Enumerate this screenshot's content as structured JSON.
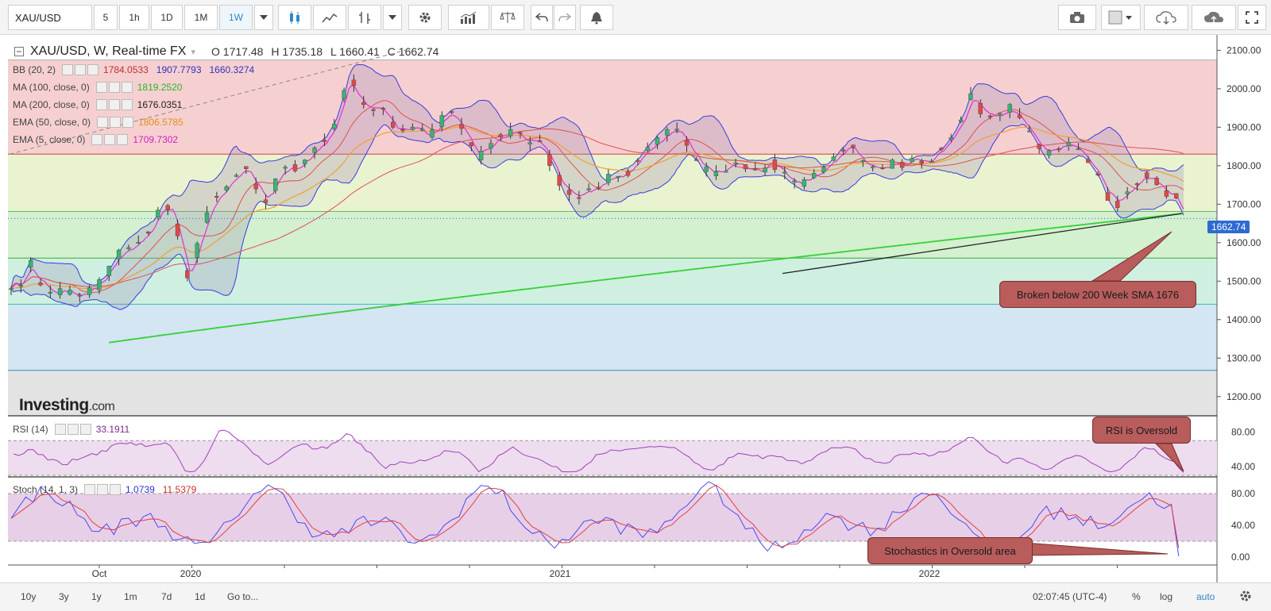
{
  "toolbar": {
    "symbol": "XAU/USD",
    "intervals": [
      "5",
      "1h",
      "1D",
      "1M",
      "1W"
    ],
    "active_interval": "1W"
  },
  "header": {
    "title": "XAU/USD, W, Real-time FX",
    "open": "O 1717.48",
    "high": "H 1735.18",
    "low": "L 1660.41",
    "close": "C 1662.74"
  },
  "indicators": {
    "bb": {
      "label": "BB (20, 2)",
      "v1": "1784.0533",
      "v2": "1907.7793",
      "v3": "1660.3274"
    },
    "ma100": {
      "label": "MA (100, close, 0)",
      "value": "1819.2520"
    },
    "ma200": {
      "label": "MA (200, close, 0)",
      "value": "1676.0351"
    },
    "ema50": {
      "label": "EMA (50, close, 0)",
      "value": "1806.5785"
    },
    "ema5": {
      "label": "EMA (5, close, 0)",
      "value": "1709.7302"
    },
    "rsi": {
      "label": "RSI (14)",
      "value": "33.1911"
    },
    "stoch": {
      "label": "Stoch (14, 1, 3)",
      "k": "1.0739",
      "d": "11.5379"
    }
  },
  "annotations": {
    "sma_break": "Broken below 200 Week SMA 1676",
    "rsi": "RSI is Oversold",
    "stoch": "Stochastics in Oversold area"
  },
  "price_label": "1662.74",
  "logo": {
    "main": "Investing",
    "suffix": ".com"
  },
  "bottom": {
    "ranges": [
      "10y",
      "3y",
      "1y",
      "1m",
      "7d",
      "1d"
    ],
    "goto": "Go to...",
    "time": "02:07:45 (UTC-4)",
    "pct": "%",
    "log": "log",
    "auto": "auto"
  },
  "colors": {
    "bull": "#3bb273",
    "bear": "#e04848",
    "bb": "#3a3ae0",
    "ma100": "#e05050",
    "ma200": "#35d135",
    "ema50": "#f0a030",
    "ema5": "#e030d0",
    "rsi": "#a040c0",
    "stoch_k": "#4a4af0",
    "stoch_d": "#e04040",
    "accent": "#2f88c9"
  },
  "chart_data": {
    "type": "candlestick",
    "title": "XAU/USD, W, Real-time FX",
    "x_labels": [
      "Oct",
      "2020",
      "2021",
      "2022"
    ],
    "y_ticks": [
      1200,
      1300,
      1400,
      1500,
      1600,
      1700,
      1800,
      1900,
      2000,
      2100
    ],
    "ylim": [
      1150,
      2140
    ],
    "fib_levels": [
      2075,
      1830,
      1681,
      1560,
      1440,
      1268
    ],
    "last_close": 1662.74,
    "ma200_value": 1676.0351,
    "rsi": {
      "ticks": [
        40,
        80
      ],
      "ylim": [
        30,
        95
      ],
      "overbought": 70,
      "oversold": 30,
      "last": 33.1911
    },
    "stoch": {
      "ticks": [
        0,
        40,
        80
      ],
      "ylim": [
        -8,
        100
      ],
      "upper": 80,
      "lower": 20,
      "k": 1.0739,
      "d": 11.5379
    },
    "price_anchors": [
      [
        0,
        1490
      ],
      [
        4,
        1500
      ],
      [
        8,
        1545
      ],
      [
        10,
        1510
      ],
      [
        14,
        1480
      ],
      [
        18,
        1470
      ],
      [
        22,
        1475
      ],
      [
        26,
        1460
      ],
      [
        30,
        1465
      ],
      [
        34,
        1480
      ],
      [
        38,
        1510
      ],
      [
        42,
        1560
      ],
      [
        46,
        1580
      ],
      [
        50,
        1590
      ],
      [
        54,
        1620
      ],
      [
        58,
        1650
      ],
      [
        62,
        1700
      ],
      [
        66,
        1690
      ],
      [
        70,
        1560
      ],
      [
        73,
        1480
      ],
      [
        76,
        1600
      ],
      [
        80,
        1680
      ],
      [
        84,
        1720
      ],
      [
        88,
        1750
      ],
      [
        92,
        1780
      ],
      [
        96,
        1800
      ],
      [
        100,
        1750
      ],
      [
        104,
        1700
      ],
      [
        108,
        1760
      ],
      [
        112,
        1800
      ],
      [
        116,
        1790
      ],
      [
        120,
        1820
      ],
      [
        124,
        1840
      ],
      [
        128,
        1870
      ],
      [
        132,
        1900
      ],
      [
        136,
        2000
      ],
      [
        138,
        2040
      ],
      [
        142,
        1960
      ],
      [
        146,
        1940
      ],
      [
        150,
        1950
      ],
      [
        154,
        1930
      ],
      [
        158,
        1880
      ],
      [
        162,
        1900
      ],
      [
        166,
        1910
      ],
      [
        170,
        1870
      ],
      [
        174,
        1900
      ],
      [
        178,
        1940
      ],
      [
        182,
        1920
      ],
      [
        186,
        1870
      ],
      [
        190,
        1820
      ],
      [
        194,
        1840
      ],
      [
        198,
        1870
      ],
      [
        202,
        1880
      ],
      [
        206,
        1890
      ],
      [
        210,
        1860
      ],
      [
        214,
        1870
      ],
      [
        218,
        1840
      ],
      [
        222,
        1780
      ],
      [
        226,
        1730
      ],
      [
        230,
        1720
      ],
      [
        234,
        1730
      ],
      [
        238,
        1740
      ],
      [
        242,
        1760
      ],
      [
        246,
        1780
      ],
      [
        250,
        1770
      ],
      [
        254,
        1800
      ],
      [
        258,
        1830
      ],
      [
        262,
        1860
      ],
      [
        266,
        1880
      ],
      [
        270,
        1900
      ],
      [
        274,
        1880
      ],
      [
        278,
        1830
      ],
      [
        282,
        1800
      ],
      [
        286,
        1780
      ],
      [
        290,
        1790
      ],
      [
        294,
        1800
      ],
      [
        298,
        1810
      ],
      [
        302,
        1790
      ],
      [
        306,
        1780
      ],
      [
        310,
        1810
      ],
      [
        314,
        1790
      ],
      [
        318,
        1760
      ],
      [
        322,
        1750
      ],
      [
        326,
        1770
      ],
      [
        330,
        1780
      ],
      [
        334,
        1800
      ],
      [
        338,
        1830
      ],
      [
        342,
        1860
      ],
      [
        346,
        1820
      ],
      [
        350,
        1800
      ],
      [
        354,
        1790
      ],
      [
        358,
        1800
      ],
      [
        362,
        1810
      ],
      [
        366,
        1800
      ],
      [
        370,
        1820
      ],
      [
        374,
        1810
      ],
      [
        378,
        1830
      ],
      [
        382,
        1860
      ],
      [
        386,
        1900
      ],
      [
        390,
        1950
      ],
      [
        393,
        2000
      ],
      [
        396,
        1940
      ],
      [
        400,
        1930
      ],
      [
        404,
        1930
      ],
      [
        408,
        1950
      ],
      [
        412,
        1930
      ],
      [
        416,
        1880
      ],
      [
        420,
        1840
      ],
      [
        424,
        1830
      ],
      [
        428,
        1840
      ],
      [
        432,
        1860
      ],
      [
        436,
        1840
      ],
      [
        440,
        1800
      ],
      [
        444,
        1780
      ],
      [
        448,
        1720
      ],
      [
        452,
        1700
      ],
      [
        456,
        1740
      ],
      [
        460,
        1760
      ],
      [
        464,
        1780
      ],
      [
        468,
        1760
      ],
      [
        472,
        1730
      ],
      [
        476,
        1715
      ],
      [
        479,
        1663
      ]
    ]
  }
}
